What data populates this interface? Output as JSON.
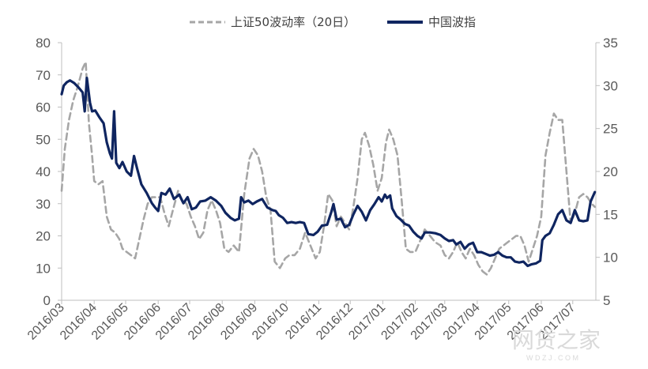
{
  "chart_data": {
    "type": "line",
    "title": "",
    "legend": {
      "placement": "top-center"
    },
    "x_ticks": [
      "2016/03",
      "2016/04",
      "2016/05",
      "2016/06",
      "2016/07",
      "2016/08",
      "2016/09",
      "2016/10",
      "2016/11",
      "2016/12",
      "2017/01",
      "2017/02",
      "2017/03",
      "2017/04",
      "2017/05",
      "2017/06",
      "2017/07"
    ],
    "y_left": {
      "min": 0,
      "max": 80,
      "ticks": [
        0,
        10,
        20,
        30,
        40,
        50,
        60,
        70,
        80
      ]
    },
    "y_right": {
      "min": 5,
      "max": 35,
      "ticks": [
        5,
        10,
        15,
        20,
        25,
        30,
        35
      ]
    },
    "grid": false,
    "series": [
      {
        "name": "上证50波动率（20日）",
        "axis": "left",
        "color": "#a6a6a6",
        "style": "dashed",
        "points": [
          [
            "2016-03-01",
            34
          ],
          [
            "2016-03-04",
            47
          ],
          [
            "2016-03-08",
            56
          ],
          [
            "2016-03-12",
            62
          ],
          [
            "2016-03-16",
            66
          ],
          [
            "2016-03-21",
            72
          ],
          [
            "2016-03-24",
            74
          ],
          [
            "2016-03-27",
            55
          ],
          [
            "2016-03-30",
            45
          ],
          [
            "2016-04-01",
            37
          ],
          [
            "2016-04-05",
            36
          ],
          [
            "2016-04-09",
            37
          ],
          [
            "2016-04-13",
            26
          ],
          [
            "2016-04-17",
            22
          ],
          [
            "2016-04-21",
            21
          ],
          [
            "2016-04-25",
            19
          ],
          [
            "2016-04-28",
            16
          ],
          [
            "2016-05-02",
            15
          ],
          [
            "2016-05-06",
            14
          ],
          [
            "2016-05-10",
            13
          ],
          [
            "2016-05-14",
            19
          ],
          [
            "2016-05-18",
            25
          ],
          [
            "2016-05-22",
            30
          ],
          [
            "2016-05-26",
            32
          ],
          [
            "2016-05-30",
            32
          ],
          [
            "2016-06-03",
            32
          ],
          [
            "2016-06-07",
            27
          ],
          [
            "2016-06-11",
            23
          ],
          [
            "2016-06-15",
            28
          ],
          [
            "2016-06-20",
            34
          ],
          [
            "2016-06-24",
            31
          ],
          [
            "2016-06-28",
            30
          ],
          [
            "2016-07-02",
            26
          ],
          [
            "2016-07-06",
            23
          ],
          [
            "2016-07-10",
            19
          ],
          [
            "2016-07-14",
            21
          ],
          [
            "2016-07-18",
            28
          ],
          [
            "2016-07-22",
            31
          ],
          [
            "2016-07-26",
            28
          ],
          [
            "2016-07-30",
            24
          ],
          [
            "2016-08-03",
            16
          ],
          [
            "2016-08-07",
            15
          ],
          [
            "2016-08-12",
            17
          ],
          [
            "2016-08-17",
            15
          ],
          [
            "2016-08-22",
            33
          ],
          [
            "2016-08-27",
            44
          ],
          [
            "2016-08-31",
            47
          ],
          [
            "2016-09-04",
            45
          ],
          [
            "2016-09-08",
            40
          ],
          [
            "2016-09-12",
            32
          ],
          [
            "2016-09-16",
            28
          ],
          [
            "2016-09-20",
            12
          ],
          [
            "2016-09-25",
            10
          ],
          [
            "2016-09-30",
            13
          ],
          [
            "2016-10-04",
            14
          ],
          [
            "2016-10-09",
            14
          ],
          [
            "2016-10-14",
            16
          ],
          [
            "2016-10-19",
            21
          ],
          [
            "2016-10-24",
            17
          ],
          [
            "2016-10-29",
            13
          ],
          [
            "2016-11-02",
            15
          ],
          [
            "2016-11-06",
            23
          ],
          [
            "2016-11-10",
            33
          ],
          [
            "2016-11-14",
            31
          ],
          [
            "2016-11-18",
            23
          ],
          [
            "2016-11-22",
            26
          ],
          [
            "2016-11-26",
            24
          ],
          [
            "2016-11-30",
            22
          ],
          [
            "2016-12-04",
            29
          ],
          [
            "2016-12-08",
            38
          ],
          [
            "2016-12-12",
            50
          ],
          [
            "2016-12-15",
            52
          ],
          [
            "2016-12-19",
            48
          ],
          [
            "2016-12-23",
            42
          ],
          [
            "2016-12-27",
            34
          ],
          [
            "2016-12-31",
            38
          ],
          [
            "2017-01-04",
            49
          ],
          [
            "2017-01-07",
            53
          ],
          [
            "2017-01-11",
            50
          ],
          [
            "2017-01-15",
            45
          ],
          [
            "2017-01-19",
            31
          ],
          [
            "2017-01-23",
            16
          ],
          [
            "2017-01-27",
            15
          ],
          [
            "2017-02-01",
            15
          ],
          [
            "2017-02-05",
            18
          ],
          [
            "2017-02-10",
            22
          ],
          [
            "2017-02-15",
            20
          ],
          [
            "2017-02-20",
            18
          ],
          [
            "2017-02-25",
            17
          ],
          [
            "2017-03-01",
            14
          ],
          [
            "2017-03-05",
            13
          ],
          [
            "2017-03-09",
            15
          ],
          [
            "2017-03-13",
            18
          ],
          [
            "2017-03-17",
            15
          ],
          [
            "2017-03-21",
            13
          ],
          [
            "2017-03-25",
            16
          ],
          [
            "2017-03-29",
            14
          ],
          [
            "2017-04-02",
            11
          ],
          [
            "2017-04-06",
            9
          ],
          [
            "2017-04-10",
            8
          ],
          [
            "2017-04-14",
            10
          ],
          [
            "2017-04-18",
            13
          ],
          [
            "2017-04-22",
            16
          ],
          [
            "2017-04-26",
            17
          ],
          [
            "2017-04-30",
            18
          ],
          [
            "2017-05-04",
            19
          ],
          [
            "2017-05-08",
            20
          ],
          [
            "2017-05-12",
            20
          ],
          [
            "2017-05-16",
            17
          ],
          [
            "2017-05-20",
            12
          ],
          [
            "2017-05-24",
            16
          ],
          [
            "2017-05-28",
            20
          ],
          [
            "2017-06-01",
            26
          ],
          [
            "2017-06-05",
            45
          ],
          [
            "2017-06-09",
            52
          ],
          [
            "2017-06-13",
            58
          ],
          [
            "2017-06-17",
            56
          ],
          [
            "2017-06-21",
            56
          ],
          [
            "2017-06-25",
            40
          ],
          [
            "2017-06-29",
            24
          ],
          [
            "2017-07-03",
            27
          ],
          [
            "2017-07-07",
            32
          ],
          [
            "2017-07-11",
            33
          ],
          [
            "2017-07-15",
            32
          ],
          [
            "2017-07-19",
            30
          ],
          [
            "2017-07-22",
            29
          ]
        ]
      },
      {
        "name": "中国波指",
        "axis": "right",
        "color": "#0f2560",
        "style": "solid",
        "points": [
          [
            "2016-03-01",
            29.0
          ],
          [
            "2016-03-03",
            30.0
          ],
          [
            "2016-03-06",
            30.4
          ],
          [
            "2016-03-09",
            30.6
          ],
          [
            "2016-03-13",
            30.3
          ],
          [
            "2016-03-17",
            29.8
          ],
          [
            "2016-03-21",
            29.2
          ],
          [
            "2016-03-23",
            27.0
          ],
          [
            "2016-03-25",
            30.9
          ],
          [
            "2016-03-28",
            28.0
          ],
          [
            "2016-03-30",
            27.0
          ],
          [
            "2016-04-02",
            27.1
          ],
          [
            "2016-04-06",
            26.3
          ],
          [
            "2016-04-10",
            25.6
          ],
          [
            "2016-04-13",
            23.4
          ],
          [
            "2016-04-16",
            22.1
          ],
          [
            "2016-04-18",
            21.5
          ],
          [
            "2016-04-20",
            27.0
          ],
          [
            "2016-04-22",
            21.0
          ],
          [
            "2016-04-25",
            20.4
          ],
          [
            "2016-04-28",
            21.1
          ],
          [
            "2016-05-02",
            20.0
          ],
          [
            "2016-05-06",
            19.5
          ],
          [
            "2016-05-09",
            21.8
          ],
          [
            "2016-05-12",
            20.3
          ],
          [
            "2016-05-16",
            18.5
          ],
          [
            "2016-05-21",
            17.5
          ],
          [
            "2016-05-26",
            16.3
          ],
          [
            "2016-05-29",
            15.8
          ],
          [
            "2016-06-01",
            15.4
          ],
          [
            "2016-06-04",
            17.5
          ],
          [
            "2016-06-08",
            17.3
          ],
          [
            "2016-06-12",
            18.0
          ],
          [
            "2016-06-16",
            16.8
          ],
          [
            "2016-06-21",
            17.3
          ],
          [
            "2016-06-25",
            16.3
          ],
          [
            "2016-06-29",
            17.0
          ],
          [
            "2016-07-03",
            15.6
          ],
          [
            "2016-07-07",
            15.8
          ],
          [
            "2016-07-11",
            16.5
          ],
          [
            "2016-07-16",
            16.6
          ],
          [
            "2016-07-21",
            17.0
          ],
          [
            "2016-07-26",
            16.6
          ],
          [
            "2016-07-31",
            16.0
          ],
          [
            "2016-08-04",
            15.2
          ],
          [
            "2016-08-09",
            14.6
          ],
          [
            "2016-08-13",
            14.3
          ],
          [
            "2016-08-17",
            14.5
          ],
          [
            "2016-08-19",
            17.0
          ],
          [
            "2016-08-22",
            16.4
          ],
          [
            "2016-08-26",
            16.6
          ],
          [
            "2016-08-30",
            16.2
          ],
          [
            "2016-09-03",
            16.5
          ],
          [
            "2016-09-08",
            16.8
          ],
          [
            "2016-09-13",
            15.8
          ],
          [
            "2016-09-18",
            15.5
          ],
          [
            "2016-09-21",
            15.4
          ],
          [
            "2016-09-24",
            14.9
          ],
          [
            "2016-09-28",
            14.6
          ],
          [
            "2016-10-02",
            14.0
          ],
          [
            "2016-10-06",
            14.1
          ],
          [
            "2016-10-10",
            14.0
          ],
          [
            "2016-10-14",
            14.1
          ],
          [
            "2016-10-18",
            14.0
          ],
          [
            "2016-10-22",
            12.7
          ],
          [
            "2016-10-27",
            12.6
          ],
          [
            "2016-10-31",
            13.0
          ],
          [
            "2016-11-04",
            13.7
          ],
          [
            "2016-11-09",
            13.8
          ],
          [
            "2016-11-13",
            15.3
          ],
          [
            "2016-11-15",
            16.2
          ],
          [
            "2016-11-18",
            14.4
          ],
          [
            "2016-11-22",
            14.5
          ],
          [
            "2016-11-26",
            13.5
          ],
          [
            "2016-11-30",
            13.8
          ],
          [
            "2016-12-04",
            15.0
          ],
          [
            "2016-12-08",
            16.0
          ],
          [
            "2016-12-12",
            15.3
          ],
          [
            "2016-12-16",
            14.3
          ],
          [
            "2016-12-20",
            15.5
          ],
          [
            "2016-12-24",
            16.2
          ],
          [
            "2016-12-28",
            17.0
          ],
          [
            "2016-12-31",
            16.5
          ],
          [
            "2017-01-03",
            17.3
          ],
          [
            "2017-01-05",
            16.9
          ],
          [
            "2017-01-08",
            17.2
          ],
          [
            "2017-01-10",
            15.7
          ],
          [
            "2017-01-14",
            14.8
          ],
          [
            "2017-01-18",
            14.4
          ],
          [
            "2017-01-22",
            13.9
          ],
          [
            "2017-01-26",
            13.7
          ],
          [
            "2017-01-30",
            13.0
          ],
          [
            "2017-02-03",
            12.5
          ],
          [
            "2017-02-07",
            12.2
          ],
          [
            "2017-02-10",
            12.9
          ],
          [
            "2017-02-15",
            12.9
          ],
          [
            "2017-02-20",
            12.8
          ],
          [
            "2017-02-25",
            12.6
          ],
          [
            "2017-03-01",
            12.2
          ],
          [
            "2017-03-05",
            11.9
          ],
          [
            "2017-03-09",
            12.0
          ],
          [
            "2017-03-12",
            11.5
          ],
          [
            "2017-03-16",
            11.8
          ],
          [
            "2017-03-20",
            11.0
          ],
          [
            "2017-03-24",
            11.5
          ],
          [
            "2017-03-28",
            11.7
          ],
          [
            "2017-04-01",
            10.6
          ],
          [
            "2017-04-05",
            10.6
          ],
          [
            "2017-04-09",
            10.4
          ],
          [
            "2017-04-13",
            10.2
          ],
          [
            "2017-04-17",
            10.3
          ],
          [
            "2017-04-21",
            10.6
          ],
          [
            "2017-04-25",
            10.2
          ],
          [
            "2017-04-29",
            10.0
          ],
          [
            "2017-05-03",
            10.0
          ],
          [
            "2017-05-07",
            9.5
          ],
          [
            "2017-05-11",
            9.4
          ],
          [
            "2017-05-15",
            9.5
          ],
          [
            "2017-05-19",
            9.0
          ],
          [
            "2017-05-23",
            9.2
          ],
          [
            "2017-05-27",
            9.3
          ],
          [
            "2017-05-31",
            9.6
          ],
          [
            "2017-06-02",
            12.0
          ],
          [
            "2017-06-05",
            12.5
          ],
          [
            "2017-06-09",
            12.8
          ],
          [
            "2017-06-13",
            13.8
          ],
          [
            "2017-06-17",
            15.0
          ],
          [
            "2017-06-21",
            15.5
          ],
          [
            "2017-06-25",
            14.3
          ],
          [
            "2017-06-29",
            14.0
          ],
          [
            "2017-07-03",
            15.5
          ],
          [
            "2017-07-07",
            14.3
          ],
          [
            "2017-07-11",
            14.2
          ],
          [
            "2017-07-15",
            14.3
          ],
          [
            "2017-07-18",
            16.5
          ],
          [
            "2017-07-22",
            17.6
          ]
        ]
      }
    ]
  },
  "watermark": {
    "text": "网贷之家",
    "subtext": "W D Z J . C O M"
  }
}
